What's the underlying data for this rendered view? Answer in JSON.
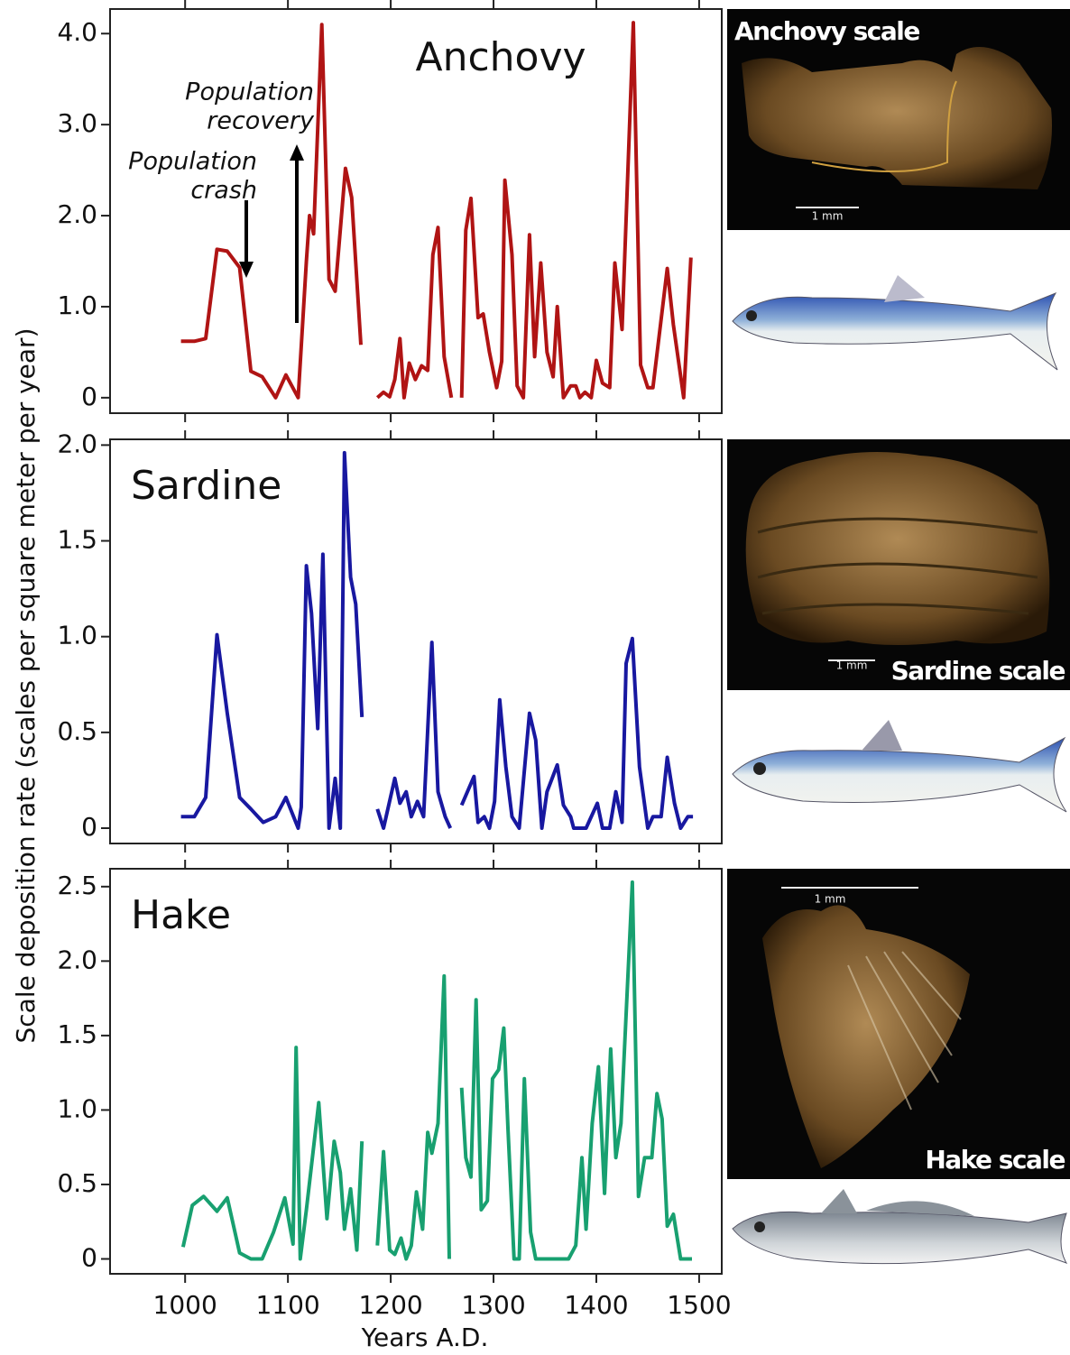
{
  "ylabel": "Scale deposition rate (scales per square meter per year)",
  "images": [
    {
      "label": "Anchovy scale",
      "scale_bar": "1 mm"
    },
    {
      "label": "Sardine scale",
      "scale_bar": "1 mm"
    },
    {
      "label": "Hake scale",
      "scale_bar": "1 mm"
    }
  ],
  "chart_data": [
    {
      "type": "line",
      "title": "Anchovy",
      "annotations": [
        [
          "Population",
          "recovery"
        ],
        [
          "Population",
          "crash"
        ]
      ],
      "xlim": [
        927,
        1522
      ],
      "xticks": [
        1000,
        1100,
        1200,
        1300,
        1400,
        1500
      ],
      "ylim": [
        -0.17,
        4.27
      ],
      "yticks": [
        0,
        {
          "value": 1,
          "label": "1.0"
        },
        {
          "value": 2,
          "label": "2.0"
        },
        {
          "value": 3,
          "label": "3.0"
        },
        {
          "value": 4,
          "label": "4.0"
        }
      ],
      "x": [
        996,
        1009,
        1020,
        1031,
        1041,
        1053,
        1064,
        1075,
        1088,
        1098,
        1110,
        1118,
        1121,
        1125,
        1133,
        1140,
        1146,
        1156,
        1162,
        1171,
        1179,
        1187,
        1193,
        1199,
        1204,
        1209,
        1213,
        1218,
        1224,
        1230,
        1236,
        1241,
        1246,
        1252,
        1259,
        1264,
        1269,
        1273,
        1278,
        1285,
        1290,
        1296,
        1303,
        1308,
        1311,
        1318,
        1323,
        1329,
        1335,
        1340,
        1346,
        1352,
        1358,
        1362,
        1368,
        1375,
        1380,
        1384,
        1389,
        1395,
        1400,
        1406,
        1413,
        1418,
        1425,
        1436,
        1443,
        1450,
        1455,
        1469,
        1475,
        1485,
        1492
      ],
      "series": [
        {
          "name": "Anchovy",
          "color": "#b01414",
          "values": [
            0.62,
            0.62,
            0.65,
            1.63,
            1.61,
            1.43,
            0.29,
            0.23,
            0,
            0.25,
            0,
            1.5,
            2.0,
            1.8,
            4.1,
            1.3,
            1.17,
            2.52,
            2.2,
            0.58,
            null,
            0,
            0.06,
            0.01,
            0.2,
            0.65,
            0,
            0.38,
            0.2,
            0.35,
            0.3,
            1.57,
            1.87,
            0.45,
            0,
            null,
            0,
            1.84,
            2.19,
            0.88,
            0.92,
            0.5,
            0.11,
            0.4,
            2.39,
            1.57,
            0.13,
            0,
            1.79,
            0.45,
            1.48,
            0.5,
            0.23,
            1.0,
            0,
            0.13,
            0.13,
            0,
            0.06,
            0,
            0.41,
            0.16,
            0.11,
            1.48,
            0.75,
            4.12,
            0.36,
            0.11,
            0.11,
            1.42,
            0.8,
            0,
            1.54
          ]
        }
      ]
    },
    {
      "type": "line",
      "title": "Sardine",
      "xlim": [
        927,
        1522
      ],
      "xticks": [
        1000,
        1100,
        1200,
        1300,
        1400,
        1500
      ],
      "ylim": [
        -0.08,
        2.03
      ],
      "yticks": [
        0,
        0.5,
        {
          "value": 1,
          "label": "1.0"
        },
        1.5,
        {
          "value": 2,
          "label": "2.0"
        }
      ],
      "x": [
        996,
        1009,
        1020,
        1031,
        1041,
        1053,
        1064,
        1076,
        1088,
        1098,
        1110,
        1113,
        1118,
        1123,
        1129,
        1134,
        1140,
        1146,
        1151,
        1155,
        1161,
        1166,
        1172,
        1179,
        1187,
        1193,
        1204,
        1209,
        1215,
        1220,
        1226,
        1232,
        1240,
        1246,
        1253,
        1258,
        1264,
        1269,
        1281,
        1285,
        1291,
        1296,
        1301,
        1306,
        1312,
        1318,
        1325,
        1335,
        1341,
        1347,
        1352,
        1362,
        1368,
        1375,
        1378,
        1390,
        1401,
        1406,
        1413,
        1419,
        1425,
        1429,
        1435,
        1442,
        1450,
        1455,
        1463,
        1469,
        1476,
        1482,
        1489,
        1494
      ],
      "series": [
        {
          "name": "Sardine",
          "color": "#1818a0",
          "values": [
            0.06,
            0.06,
            0.16,
            1.01,
            0.6,
            0.16,
            0.1,
            0.03,
            0.06,
            0.16,
            0,
            0.11,
            1.37,
            1.12,
            0.52,
            1.43,
            0,
            0.26,
            0,
            1.96,
            1.31,
            1.17,
            0.58,
            null,
            0.1,
            0,
            0.26,
            0.13,
            0.19,
            0.06,
            0.14,
            0.06,
            0.97,
            0.19,
            0.06,
            0,
            null,
            0.12,
            0.27,
            0.03,
            0.06,
            0,
            0.14,
            0.67,
            0.32,
            0.06,
            0,
            0.6,
            0.46,
            0,
            0.19,
            0.33,
            0.12,
            0.06,
            0,
            0,
            0.13,
            0,
            0,
            0.19,
            0.03,
            0.86,
            0.99,
            0.32,
            0,
            0.06,
            0.06,
            0.37,
            0.13,
            0,
            0.06,
            0.06
          ]
        }
      ]
    },
    {
      "type": "line",
      "title": "Hake",
      "xlabel": "Years A.D.",
      "xlim": [
        927,
        1522
      ],
      "xticks": [
        1000,
        1100,
        1200,
        1300,
        1400,
        1500
      ],
      "ylim": [
        -0.1,
        2.62
      ],
      "yticks": [
        0,
        0.5,
        {
          "value": 1,
          "label": "1.0"
        },
        1.5,
        {
          "value": 2,
          "label": "2.0"
        },
        2.5
      ],
      "x": [
        998,
        1007,
        1018,
        1031,
        1041,
        1053,
        1064,
        1075,
        1086,
        1097,
        1105,
        1108,
        1112,
        1118,
        1130,
        1138,
        1145,
        1151,
        1155,
        1161,
        1167,
        1172,
        1179,
        1187,
        1193,
        1199,
        1204,
        1210,
        1215,
        1220,
        1225,
        1231,
        1236,
        1240,
        1246,
        1252,
        1257,
        1264,
        1269,
        1273,
        1278,
        1283,
        1288,
        1294,
        1299,
        1305,
        1310,
        1314,
        1320,
        1325,
        1330,
        1336,
        1341,
        1373,
        1380,
        1386,
        1390,
        1396,
        1402,
        1408,
        1414,
        1419,
        1424,
        1435,
        1441,
        1447,
        1454,
        1459,
        1464,
        1469,
        1475,
        1482,
        1493
      ],
      "series": [
        {
          "name": "Hake",
          "color": "#18a070",
          "values": [
            0.08,
            0.36,
            0.42,
            0.32,
            0.41,
            0.04,
            0,
            0,
            0.18,
            0.41,
            0.1,
            1.42,
            0,
            0.33,
            1.05,
            0.27,
            0.79,
            0.58,
            0.2,
            0.47,
            0.06,
            0.79,
            null,
            0.09,
            0.72,
            0.06,
            0.03,
            0.14,
            0,
            0.09,
            0.45,
            0.2,
            0.85,
            0.71,
            0.91,
            1.9,
            0,
            null,
            1.15,
            0.68,
            0.55,
            1.74,
            0.33,
            0.39,
            1.21,
            1.27,
            1.55,
            0.88,
            0,
            0,
            1.21,
            0.18,
            0,
            0,
            0.09,
            0.68,
            0.2,
            0.91,
            1.29,
            0.44,
            1.41,
            0.68,
            0.91,
            2.53,
            0.42,
            0.68,
            0.68,
            1.11,
            0.94,
            0.22,
            0.3,
            0,
            0
          ]
        }
      ]
    }
  ]
}
